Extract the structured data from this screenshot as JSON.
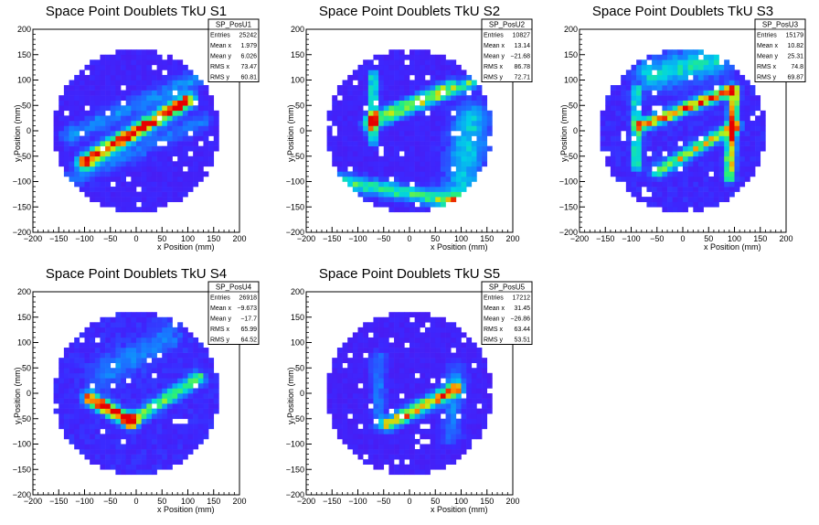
{
  "chart_data": [
    {
      "type": "heatmap",
      "title": "Space Point Doublets TkU S1",
      "xlabel": "x Position (mm)",
      "ylabel": "y Position (mm)",
      "xlim": [
        -200,
        200
      ],
      "ylim": [
        -200,
        200
      ],
      "x_ticks": [
        "−200",
        "−150",
        "−100",
        "−50",
        "0",
        "50",
        "100",
        "150",
        "200"
      ],
      "y_ticks": [
        "−200",
        "−150",
        "−100",
        "−50",
        "0",
        "50",
        "100",
        "150",
        "200"
      ],
      "stats": {
        "name": "SP_PosU1",
        "rows": [
          [
            "Entries",
            "25242"
          ],
          [
            "Mean x",
            "1.979"
          ],
          [
            "Mean y",
            "6.026"
          ],
          [
            "RMS x",
            "73.47"
          ],
          [
            "RMS y",
            "60.81"
          ]
        ]
      },
      "features": [
        {
          "kind": "band",
          "x1": -100,
          "y1": -60,
          "x2": 100,
          "y2": 60,
          "width": 10,
          "peak": 1.0
        },
        {
          "kind": "band",
          "x1": -130,
          "y1": -10,
          "x2": 130,
          "y2": 110,
          "width": 12,
          "peak": 0.22
        },
        {
          "kind": "band",
          "x1": -130,
          "y1": -100,
          "x2": 130,
          "y2": 20,
          "width": 12,
          "peak": 0.18
        }
      ],
      "background": 0.12
    },
    {
      "type": "heatmap",
      "title": "Space Point Doublets TkU S2",
      "xlabel": "x Position (mm)",
      "ylabel": "y Position (mm)",
      "xlim": [
        -200,
        200
      ],
      "ylim": [
        -200,
        200
      ],
      "x_ticks": [
        "−200",
        "−150",
        "−100",
        "−50",
        "0",
        "50",
        "100",
        "150",
        "200"
      ],
      "y_ticks": [
        "−200",
        "−150",
        "−100",
        "−50",
        "0",
        "50",
        "100",
        "150",
        "200"
      ],
      "stats": {
        "name": "SP_PosU2",
        "rows": [
          [
            "Entries",
            "10827"
          ],
          [
            "Mean x",
            "13.14"
          ],
          [
            "Mean y",
            "−21.68"
          ],
          [
            "RMS x",
            "86.78"
          ],
          [
            "RMS y",
            "72.71"
          ]
        ]
      },
      "features": [
        {
          "kind": "band",
          "x1": -80,
          "y1": 10,
          "x2": 130,
          "y2": 100,
          "width": 8,
          "peak": 0.55
        },
        {
          "kind": "band",
          "x1": -80,
          "y1": 25,
          "x2": 80,
          "y2": 95,
          "width": 6,
          "peak": 0.4
        },
        {
          "kind": "band",
          "x1": -70,
          "y1": -20,
          "x2": -70,
          "y2": 110,
          "width": 6,
          "peak": 0.55
        },
        {
          "kind": "band",
          "x1": -130,
          "y1": -100,
          "x2": 150,
          "y2": -150,
          "width": 10,
          "peak": 0.5
        },
        {
          "kind": "band",
          "x1": 100,
          "y1": -130,
          "x2": 120,
          "y2": 20,
          "width": 25,
          "peak": 0.35
        }
      ],
      "background": 0.12
    },
    {
      "type": "heatmap",
      "title": "Space Point Doublets TkU S3",
      "xlabel": "x Position (mm)",
      "ylabel": "y Position (mm)",
      "xlim": [
        -200,
        200
      ],
      "ylim": [
        -200,
        200
      ],
      "x_ticks": [
        "−200",
        "−150",
        "−100",
        "−50",
        "0",
        "50",
        "100",
        "150",
        "200"
      ],
      "y_ticks": [
        "−200",
        "−150",
        "−100",
        "−50",
        "0",
        "50",
        "100",
        "150",
        "200"
      ],
      "stats": {
        "name": "SP_PosU3",
        "rows": [
          [
            "Entries",
            "15179"
          ],
          [
            "Mean x",
            "10.82"
          ],
          [
            "Mean y",
            "25.31"
          ],
          [
            "RMS x",
            "74.8"
          ],
          [
            "RMS y",
            "69.87"
          ]
        ]
      },
      "features": [
        {
          "kind": "band",
          "x1": -80,
          "y1": 10,
          "x2": 90,
          "y2": 80,
          "width": 8,
          "peak": 0.85
        },
        {
          "kind": "band",
          "x1": -50,
          "y1": -80,
          "x2": 100,
          "y2": 10,
          "width": 8,
          "peak": 0.65
        },
        {
          "kind": "band",
          "x1": 90,
          "y1": -90,
          "x2": 100,
          "y2": 80,
          "width": 7,
          "peak": 0.75
        },
        {
          "kind": "band",
          "x1": -90,
          "y1": -70,
          "x2": -90,
          "y2": 80,
          "width": 6,
          "peak": 0.5
        },
        {
          "kind": "band",
          "x1": -60,
          "y1": 110,
          "x2": 60,
          "y2": 140,
          "width": 20,
          "peak": 0.4
        }
      ],
      "background": 0.14
    },
    {
      "type": "heatmap",
      "title": "Space Point Doublets TkU S4",
      "xlabel": "x Position (mm)",
      "ylabel": "y Position (mm)",
      "xlim": [
        -200,
        200
      ],
      "ylim": [
        -200,
        200
      ],
      "x_ticks": [
        "−200",
        "−150",
        "−100",
        "−50",
        "0",
        "50",
        "100",
        "150",
        "200"
      ],
      "y_ticks": [
        "−200",
        "−150",
        "−100",
        "−50",
        "0",
        "50",
        "100",
        "150",
        "200"
      ],
      "stats": {
        "name": "SP_PosU4",
        "rows": [
          [
            "Entries",
            "26918"
          ],
          [
            "Mean x",
            "−9.673"
          ],
          [
            "Mean y",
            "−17.7"
          ],
          [
            "RMS x",
            "65.99"
          ],
          [
            "RMS y",
            "64.52"
          ]
        ]
      },
      "features": [
        {
          "kind": "band",
          "x1": -90,
          "y1": -10,
          "x2": -10,
          "y2": -55,
          "width": 9,
          "peak": 1.0
        },
        {
          "kind": "band",
          "x1": -10,
          "y1": -55,
          "x2": 120,
          "y2": 30,
          "width": 9,
          "peak": 0.55
        },
        {
          "kind": "band",
          "x1": -60,
          "y1": 40,
          "x2": 60,
          "y2": 110,
          "width": 20,
          "peak": 0.18
        }
      ],
      "background": 0.14
    },
    {
      "type": "heatmap",
      "title": "Space Point Doublets TkU S5",
      "xlabel": "x Position (mm)",
      "ylabel": "y Position (mm)",
      "xlim": [
        -200,
        200
      ],
      "ylim": [
        -200,
        200
      ],
      "x_ticks": [
        "−200",
        "−150",
        "−100",
        "−50",
        "0",
        "50",
        "100",
        "150",
        "200"
      ],
      "y_ticks": [
        "−200",
        "−150",
        "−100",
        "−50",
        "0",
        "50",
        "100",
        "150",
        "200"
      ],
      "stats": {
        "name": "SP_PosU5",
        "rows": [
          [
            "Entries",
            "17212"
          ],
          [
            "Mean x",
            "31.45"
          ],
          [
            "Mean y",
            "−26.86"
          ],
          [
            "RMS x",
            "63.44"
          ],
          [
            "RMS y",
            "53.51"
          ]
        ]
      },
      "features": [
        {
          "kind": "band",
          "x1": -40,
          "y1": -60,
          "x2": 90,
          "y2": 10,
          "width": 9,
          "peak": 0.8
        },
        {
          "kind": "band",
          "x1": -60,
          "y1": -60,
          "x2": -60,
          "y2": 70,
          "width": 10,
          "peak": 0.2
        },
        {
          "kind": "band",
          "x1": 80,
          "y1": -80,
          "x2": 90,
          "y2": 40,
          "width": 14,
          "peak": 0.2
        }
      ],
      "background": 0.11
    }
  ]
}
